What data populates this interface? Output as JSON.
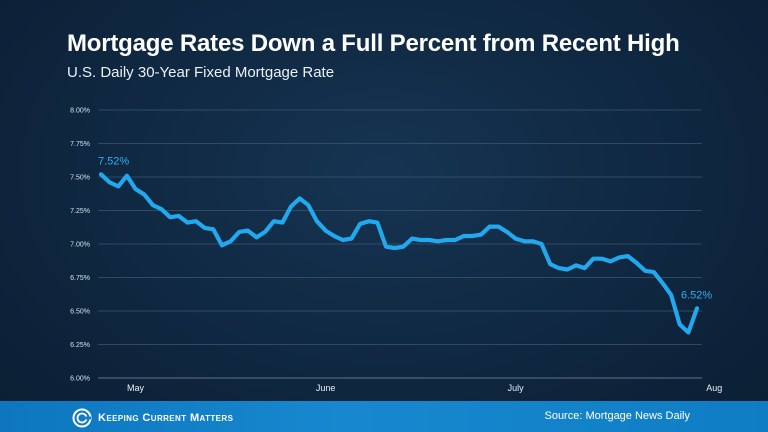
{
  "chart_data": {
    "type": "line",
    "title": "Mortgage Rates Down a Full Percent from Recent High",
    "subtitle": "U.S. Daily 30-Year Fixed Mortgage Rate",
    "xlabel": "",
    "ylabel": "",
    "ylim": [
      6.0,
      8.0
    ],
    "y_ticks": [
      "6.00%",
      "6.25%",
      "6.50%",
      "6.75%",
      "7.00%",
      "7.25%",
      "7.50%",
      "7.75%",
      "8.00%"
    ],
    "y_tick_values": [
      6.0,
      6.25,
      6.5,
      6.75,
      7.0,
      7.25,
      7.5,
      7.75,
      8.0
    ],
    "x_month_labels": [
      {
        "label": "May",
        "index": 4
      },
      {
        "label": "June",
        "index": 26
      },
      {
        "label": "July",
        "index": 48
      },
      {
        "label": "Aug",
        "index": 71
      }
    ],
    "grid": true,
    "series": [
      {
        "name": "U.S. Daily 30-Year Fixed Mortgage Rate",
        "color": "#22a8ee",
        "values": [
          7.52,
          7.46,
          7.43,
          7.51,
          7.41,
          7.37,
          7.29,
          7.26,
          7.2,
          7.21,
          7.16,
          7.17,
          7.12,
          7.11,
          6.99,
          7.02,
          7.09,
          7.1,
          7.05,
          7.09,
          7.17,
          7.16,
          7.28,
          7.34,
          7.29,
          7.17,
          7.1,
          7.06,
          7.03,
          7.04,
          7.15,
          7.17,
          7.16,
          6.98,
          6.97,
          6.98,
          7.04,
          7.03,
          7.03,
          7.02,
          7.03,
          7.03,
          7.06,
          7.06,
          7.07,
          7.13,
          7.13,
          7.09,
          7.04,
          7.02,
          7.02,
          7.0,
          6.85,
          6.82,
          6.81,
          6.84,
          6.82,
          6.89,
          6.89,
          6.87,
          6.9,
          6.91,
          6.86,
          6.8,
          6.79,
          6.71,
          6.62,
          6.4,
          6.34,
          6.52
        ]
      }
    ],
    "annotations": [
      {
        "text": "7.52%",
        "index": 0,
        "value": 7.52
      },
      {
        "text": "6.52%",
        "index": 69,
        "value": 6.52
      }
    ]
  },
  "footer": {
    "brand": "Keeping Current Matters",
    "source": "Source: Mortgage News Daily"
  },
  "colors": {
    "background": "#0f2740",
    "line": "#22a8ee",
    "footer": "#1380c7",
    "text": "#ffffff"
  }
}
